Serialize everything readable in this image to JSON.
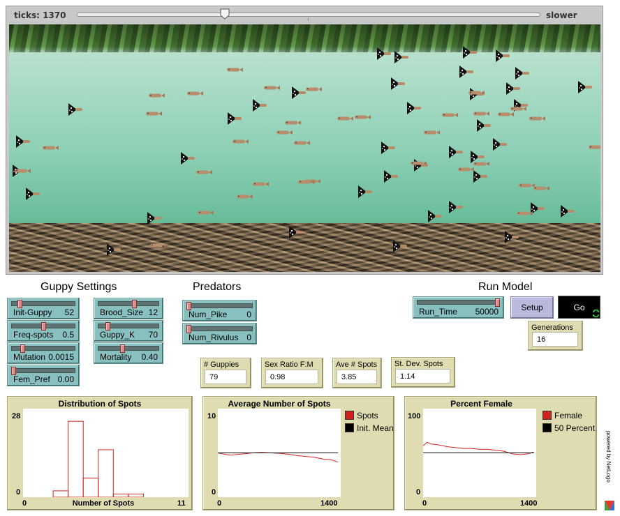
{
  "view": {
    "ticks_label": "ticks: 1370",
    "speed_label": "slower",
    "speed": 0.32
  },
  "sections": {
    "guppy_title": "Guppy Settings",
    "predators_title": "Predators",
    "run_title": "Run Model"
  },
  "sliders": {
    "init_guppy": {
      "label": "Init-Guppy",
      "value": "52",
      "fraction": 0.11
    },
    "freq_spots": {
      "label": "Freq-spots",
      "value": "0.5",
      "fraction": 0.5
    },
    "mutation": {
      "label": "Mutation",
      "value": "0.0015",
      "fraction": 0.15
    },
    "fem_pref": {
      "label": "Fem_Pref",
      "value": "0.00",
      "fraction": 0.0
    },
    "brood_size": {
      "label": "Brood_Size",
      "value": "12",
      "fraction": 0.6
    },
    "guppy_k": {
      "label": "Guppy_K",
      "value": "70",
      "fraction": 0.14
    },
    "mortality": {
      "label": "Mortality",
      "value": "0.40",
      "fraction": 0.4
    },
    "num_pike": {
      "label": "Num_Pike",
      "value": "0",
      "fraction": 0.0
    },
    "num_rivulus": {
      "label": "Num_Rivulus",
      "value": "0",
      "fraction": 0.0
    },
    "run_time": {
      "label": "Run_Time",
      "value": "50000",
      "fraction": 1.0
    }
  },
  "buttons": {
    "setup": "Setup",
    "go": "Go"
  },
  "monitors": {
    "generations": {
      "label": "Generations",
      "value": "16"
    },
    "guppies": {
      "label": "# Guppies",
      "value": "79"
    },
    "sex_ratio": {
      "label": "Sex Ratio F:M",
      "value": "0.98"
    },
    "ave_spots": {
      "label": "Ave # Spots",
      "value": "3.85"
    },
    "sd_spots": {
      "label": "St. Dev. Spots",
      "value": "1.14"
    }
  },
  "powered_by": "powered by NetLogo",
  "colors": {
    "slider": "#88c0c0",
    "monitor": "#e0dcb2",
    "button": "#b9b9dd",
    "series_red": "#d02020",
    "series_black": "#000000"
  },
  "chart_data": [
    {
      "type": "bar",
      "title": "Distribution of Spots",
      "xlabel": "Number of Spots",
      "x_min": "0",
      "x_max": "11",
      "y_max": "28",
      "y_min": "0",
      "xlim": [
        0,
        11
      ],
      "ylim": [
        0,
        28
      ],
      "bin_starts": [
        2,
        3,
        4,
        5,
        6,
        7
      ],
      "values": [
        2,
        24,
        6,
        15,
        1,
        1
      ],
      "color": "#d02020"
    },
    {
      "type": "line",
      "title": "Average Number of Spots",
      "x_min": "0",
      "x_max": "1400",
      "y_max": "10",
      "y_min": "0",
      "xlim": [
        0,
        1400
      ],
      "ylim": [
        0,
        10
      ],
      "series": [
        {
          "name": "Spots",
          "color": "#d02020",
          "x": [
            0,
            50,
            100,
            150,
            200,
            300,
            400,
            500,
            600,
            700,
            800,
            900,
            1000,
            1100,
            1200,
            1300,
            1370
          ],
          "y": [
            5.0,
            4.9,
            4.8,
            4.75,
            4.8,
            4.9,
            5.0,
            5.05,
            5.0,
            4.95,
            4.85,
            4.7,
            4.6,
            4.5,
            4.3,
            4.2,
            3.95
          ]
        },
        {
          "name": "Init. Mean",
          "color": "#000000",
          "x": [
            0,
            1370
          ],
          "y": [
            5.0,
            5.0
          ]
        }
      ]
    },
    {
      "type": "line",
      "title": "Percent Female",
      "x_min": "0",
      "x_max": "1400",
      "y_max": "100",
      "y_min": "0",
      "xlim": [
        0,
        1400
      ],
      "ylim": [
        0,
        100
      ],
      "series": [
        {
          "name": "Female",
          "color": "#d02020",
          "x": [
            0,
            50,
            100,
            200,
            300,
            400,
            500,
            600,
            700,
            800,
            900,
            1000,
            1100,
            1200,
            1300,
            1370
          ],
          "y": [
            58,
            62,
            60,
            59,
            57,
            56,
            55,
            55,
            54,
            54,
            53,
            52,
            49,
            48,
            49,
            51
          ]
        },
        {
          "name": "50 Percent",
          "color": "#000000",
          "x": [
            0,
            1370
          ],
          "y": [
            50,
            50
          ]
        }
      ]
    }
  ]
}
